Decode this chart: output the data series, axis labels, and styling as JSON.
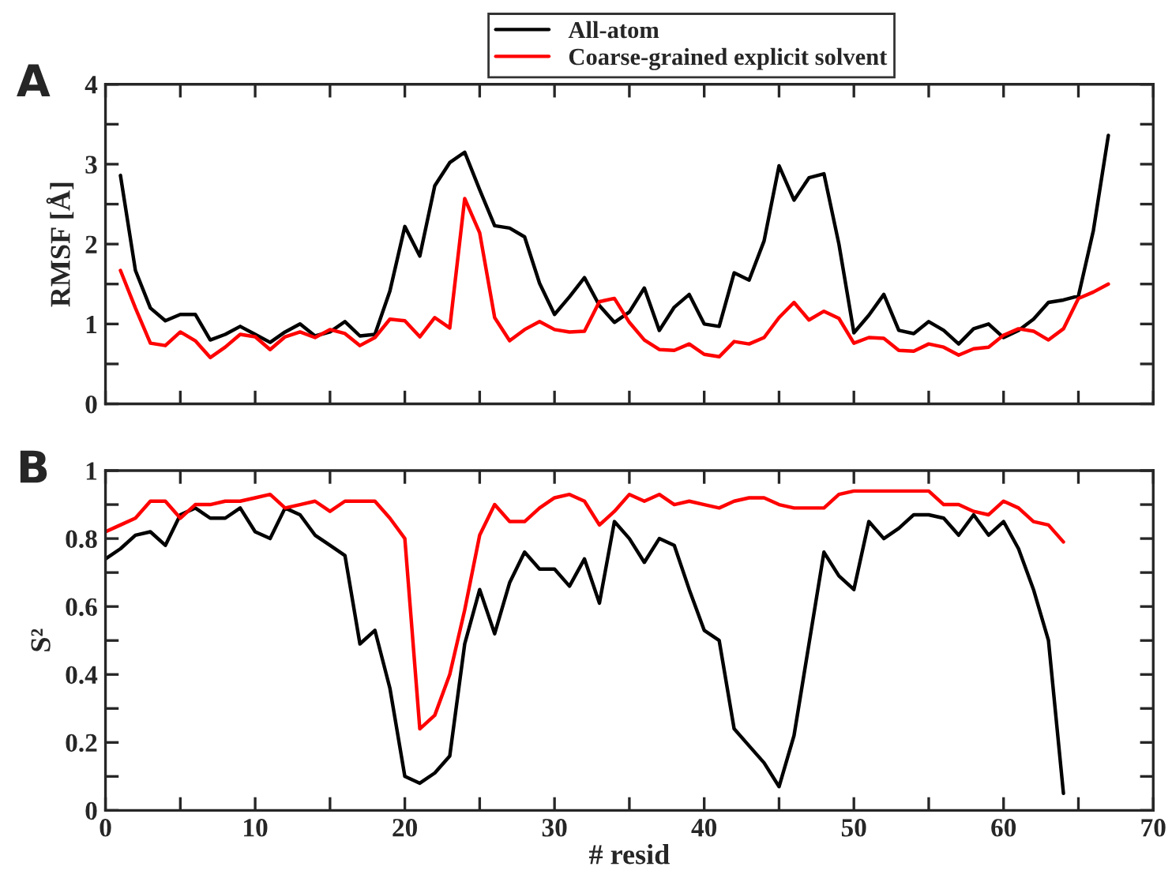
{
  "chart_data": [
    {
      "type": "line",
      "ylabel": "RMSF [Å]",
      "annotations": [
        "A"
      ],
      "legend": "top",
      "tick_labels": "y",
      "grid": false,
      "marker": "none",
      "line_style": "solid",
      "xlim": [
        0,
        70
      ],
      "xticks": [
        {
          "value": 0,
          "label": null
        },
        {
          "value": 5,
          "label": null
        },
        {
          "value": 10,
          "label": null
        },
        {
          "value": 15,
          "label": null
        },
        {
          "value": 20,
          "label": null
        },
        {
          "value": 25,
          "label": null
        },
        {
          "value": 30,
          "label": null
        },
        {
          "value": 35,
          "label": null
        },
        {
          "value": 40,
          "label": null
        },
        {
          "value": 45,
          "label": null
        },
        {
          "value": 50,
          "label": null
        },
        {
          "value": 55,
          "label": null
        },
        {
          "value": 60,
          "label": null
        },
        {
          "value": 65,
          "label": null
        },
        {
          "value": 70,
          "label": null
        }
      ],
      "ylim": [
        0,
        4
      ],
      "yticks": [
        0,
        {
          "value": 0.5,
          "label": null
        },
        1,
        {
          "value": 1.5,
          "label": null
        },
        2,
        {
          "value": 2.5,
          "label": null
        },
        3,
        {
          "value": 3.5,
          "label": null
        },
        4
      ],
      "x": [
        1,
        2,
        3,
        4,
        5,
        6,
        7,
        8,
        9,
        10,
        11,
        12,
        13,
        14,
        15,
        16,
        17,
        18,
        19,
        20,
        21,
        22,
        23,
        24,
        25,
        26,
        27,
        28,
        29,
        30,
        31,
        32,
        33,
        34,
        35,
        36,
        37,
        38,
        39,
        40,
        41,
        42,
        43,
        44,
        45,
        46,
        47,
        48,
        49,
        50,
        51,
        52,
        53,
        54,
        55,
        56,
        57,
        58,
        59,
        60,
        61,
        62,
        63,
        64,
        65,
        66,
        67
      ],
      "series": [
        {
          "name": "All-atom",
          "color": "#000000",
          "values": [
            2.86,
            1.67,
            1.2,
            1.04,
            1.12,
            1.12,
            0.8,
            0.87,
            0.97,
            0.87,
            0.77,
            0.9,
            1.0,
            0.85,
            0.9,
            1.03,
            0.85,
            0.87,
            1.41,
            2.22,
            1.85,
            2.73,
            3.02,
            3.15,
            2.68,
            2.23,
            2.2,
            2.09,
            1.51,
            1.12,
            1.34,
            1.58,
            1.23,
            1.02,
            1.15,
            1.45,
            0.92,
            1.21,
            1.37,
            1.0,
            0.97,
            1.64,
            1.55,
            2.04,
            2.98,
            2.55,
            2.83,
            2.88,
            2.0,
            0.89,
            1.11,
            1.37,
            0.92,
            0.88,
            1.03,
            0.92,
            0.75,
            0.94,
            1.0,
            0.83,
            0.92,
            1.06,
            1.27,
            1.3,
            1.35,
            2.17,
            3.36
          ]
        },
        {
          "name": "Coarse-grained explicit solvent",
          "color": "#ff0000",
          "values": [
            1.67,
            1.2,
            0.76,
            0.73,
            0.9,
            0.79,
            0.58,
            0.71,
            0.87,
            0.84,
            0.68,
            0.84,
            0.9,
            0.83,
            0.93,
            0.88,
            0.73,
            0.83,
            1.06,
            1.04,
            0.84,
            1.08,
            0.95,
            2.57,
            2.14,
            1.08,
            0.79,
            0.93,
            1.03,
            0.93,
            0.9,
            0.91,
            1.28,
            1.32,
            1.02,
            0.8,
            0.68,
            0.67,
            0.75,
            0.62,
            0.59,
            0.78,
            0.75,
            0.83,
            1.08,
            1.27,
            1.05,
            1.16,
            1.07,
            0.76,
            0.83,
            0.82,
            0.67,
            0.66,
            0.75,
            0.71,
            0.61,
            0.69,
            0.71,
            0.86,
            0.94,
            0.91,
            0.8,
            0.94,
            1.32,
            1.4,
            1.5
          ]
        }
      ]
    },
    {
      "type": "line",
      "ylabel": "S²",
      "xlabel": "# resid",
      "annotations": [
        "B"
      ],
      "grid": false,
      "marker": "none",
      "line_style": "solid",
      "xlim": [
        0,
        70
      ],
      "xticks": [
        0,
        {
          "value": 5,
          "label": null
        },
        10,
        {
          "value": 15,
          "label": null
        },
        20,
        {
          "value": 25,
          "label": null
        },
        30,
        {
          "value": 35,
          "label": null
        },
        40,
        {
          "value": 45,
          "label": null
        },
        50,
        {
          "value": 55,
          "label": null
        },
        60,
        {
          "value": 65,
          "label": null
        },
        70
      ],
      "ylim": [
        0,
        1
      ],
      "yticks": [
        0,
        {
          "value": 0.1,
          "label": null
        },
        0.2,
        {
          "value": 0.3,
          "label": null
        },
        0.4,
        {
          "value": 0.5,
          "label": null
        },
        0.6,
        {
          "value": 0.7,
          "label": null
        },
        0.8,
        {
          "value": 0.9,
          "label": null
        },
        1
      ],
      "x": [
        0,
        1,
        2,
        3,
        4,
        5,
        6,
        7,
        8,
        9,
        10,
        11,
        12,
        13,
        14,
        15,
        16,
        17,
        18,
        19,
        20,
        21,
        22,
        23,
        24,
        25,
        26,
        27,
        28,
        29,
        30,
        31,
        32,
        33,
        34,
        35,
        36,
        37,
        38,
        39,
        40,
        41,
        42,
        43,
        44,
        45,
        46,
        47,
        48,
        49,
        50,
        51,
        52,
        53,
        54,
        55,
        56,
        57,
        58,
        59,
        60,
        61,
        62,
        63,
        64
      ],
      "series": [
        {
          "color": "#000000",
          "values": [
            0.74,
            0.77,
            0.81,
            0.82,
            0.78,
            0.87,
            0.89,
            0.86,
            0.86,
            0.89,
            0.82,
            0.8,
            0.89,
            0.87,
            0.81,
            0.78,
            0.75,
            0.49,
            0.53,
            0.36,
            0.1,
            0.08,
            0.11,
            0.16,
            0.49,
            0.65,
            0.52,
            0.67,
            0.76,
            0.71,
            0.71,
            0.66,
            0.74,
            0.61,
            0.85,
            0.8,
            0.73,
            0.8,
            0.78,
            0.65,
            0.53,
            0.5,
            0.24,
            0.19,
            0.14,
            0.07,
            0.22,
            0.49,
            0.76,
            0.69,
            0.65,
            0.85,
            0.8,
            0.83,
            0.87,
            0.87,
            0.86,
            0.81,
            0.87,
            0.81,
            0.85,
            0.77,
            0.65,
            0.5,
            0.05
          ]
        },
        {
          "color": "#ff0000",
          "values": [
            0.82,
            0.84,
            0.86,
            0.91,
            0.91,
            0.86,
            0.9,
            0.9,
            0.91,
            0.91,
            0.92,
            0.93,
            0.89,
            0.9,
            0.91,
            0.88,
            0.91,
            0.91,
            0.91,
            0.86,
            0.8,
            0.24,
            0.28,
            0.4,
            0.59,
            0.81,
            0.9,
            0.85,
            0.85,
            0.89,
            0.92,
            0.93,
            0.91,
            0.84,
            0.88,
            0.93,
            0.91,
            0.93,
            0.9,
            0.91,
            0.9,
            0.89,
            0.91,
            0.92,
            0.92,
            0.9,
            0.89,
            0.89,
            0.89,
            0.93,
            0.94,
            0.94,
            0.94,
            0.94,
            0.94,
            0.94,
            0.9,
            0.9,
            0.88,
            0.87,
            0.91,
            0.89,
            0.85,
            0.84,
            0.79
          ]
        }
      ]
    }
  ]
}
